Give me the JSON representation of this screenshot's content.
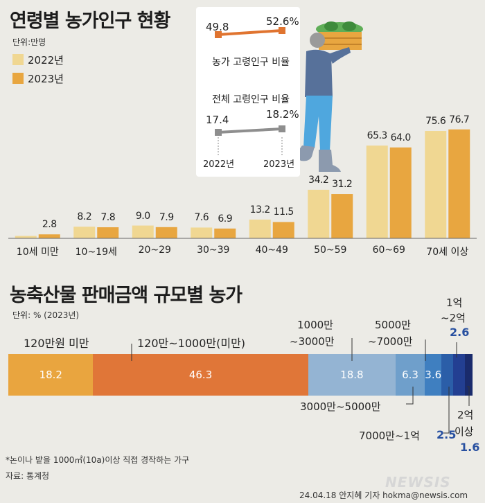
{
  "chart_data": [
    {
      "type": "bar",
      "title": "연령별 농가인구 현황",
      "unit": "단위:만명",
      "categories": [
        "10세 미만",
        "10~19세",
        "20~29",
        "30~39",
        "40~49",
        "50~59",
        "60~69",
        "70세 이상"
      ],
      "series": [
        {
          "name": "2022년",
          "color": "#f0d792",
          "values": [
            1.7,
            8.2,
            9.0,
            7.6,
            13.2,
            34.2,
            65.3,
            75.6
          ]
        },
        {
          "name": "2023년",
          "color": "#e8a640",
          "values": [
            2.8,
            7.8,
            7.9,
            6.9,
            11.5,
            31.2,
            64.0,
            76.7
          ]
        }
      ],
      "value_labels": [
        [
          "",
          "8.2",
          "9.0",
          "7.6",
          "13.2",
          "34.2",
          "65.3",
          "75.6"
        ],
        [
          "2.8",
          "7.8",
          "7.9",
          "6.9",
          "11.5",
          "31.2",
          "64.0",
          "76.7"
        ]
      ],
      "ylim": [
        0,
        80
      ],
      "legend": "top-left"
    },
    {
      "type": "line",
      "x": [
        "2022년",
        "2023년"
      ],
      "series": [
        {
          "name": "농가 고령인구 비율",
          "color": "#e07430",
          "values": [
            49.8,
            52.6
          ],
          "labels": [
            "49.8",
            "52.6%"
          ]
        },
        {
          "name": "전체 고령인구 비율",
          "color": "#8e8e8e",
          "values": [
            17.4,
            18.2
          ],
          "labels": [
            "17.4",
            "18.2%"
          ]
        }
      ]
    },
    {
      "type": "bar",
      "subtype": "stacked-100",
      "title": "농축산물 판매금액 규모별 농가",
      "unit": "단위: % (2023년)",
      "categories": [
        "120만원 미만",
        "120만~1000만(미만)",
        "1000만~3000만",
        "3000만~5000만",
        "5000만~7000만",
        "7000만~1억",
        "1억~2억",
        "2억 이상"
      ],
      "values": [
        18.2,
        46.3,
        18.8,
        6.3,
        3.6,
        2.5,
        2.6,
        1.6
      ],
      "value_labels": [
        "18.2",
        "46.3",
        "18.8",
        "6.3",
        "3.6",
        "2.5",
        "2.6",
        "1.6"
      ],
      "colors": [
        "#e9a53f",
        "#e07638",
        "#94b4d3",
        "#6f9fcb",
        "#3f7fc0",
        "#2b5ea8",
        "#233f92",
        "#1a2b6c"
      ]
    }
  ],
  "labels": {
    "cat_1000_3000_line1": "1000만",
    "cat_1000_3000_line2": "~3000만",
    "cat_5000_7000_line1": "5000만",
    "cat_5000_7000_line2": "~7000만",
    "cat_1_2_line1": "1억",
    "cat_1_2_line2": "~2억",
    "cat_2_line1": "2억",
    "cat_2_line2": "이상"
  },
  "footer": {
    "note": "*논이나 밭을 1000㎡(10a)이상 직접 경작하는 가구",
    "source": "자료: 통계청",
    "credit": "24.04.18 안지혜 기자 hokma@newsis.com",
    "logo": "NEWSIS"
  }
}
